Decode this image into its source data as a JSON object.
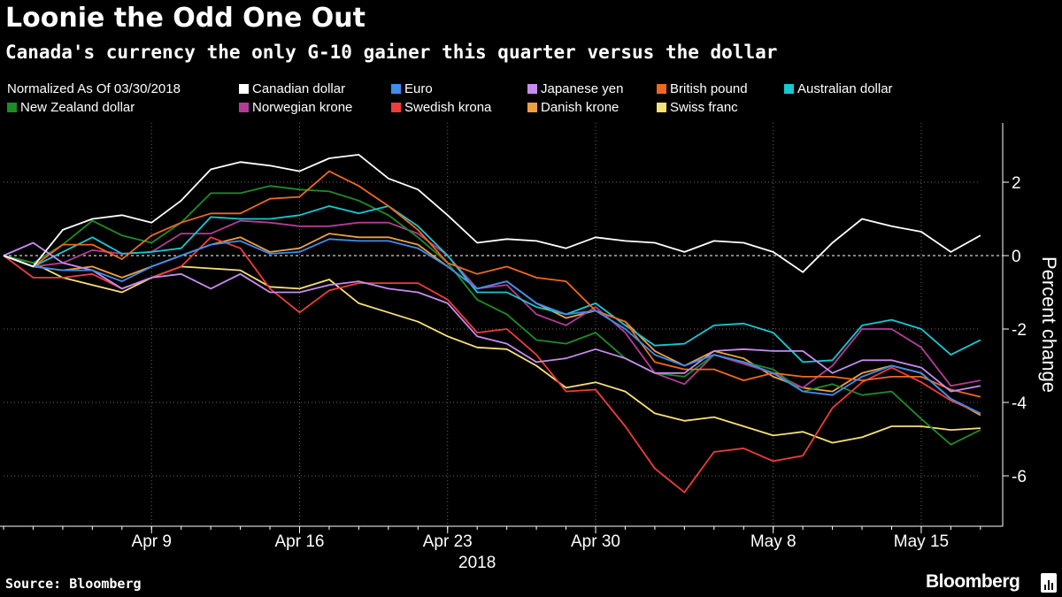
{
  "title": "Loonie the Odd One Out",
  "subtitle": "Canada's currency the only G-10 gainer this quarter versus the dollar",
  "legend_note": "Normalized As Of 03/30/2018",
  "source": "Source: Bloomberg",
  "brand": "Bloomberg",
  "chart_data": {
    "type": "line",
    "title": "Loonie the Odd One Out",
    "subtitle": "Canada's currency the only G-10 gainer this quarter versus the dollar",
    "ylabel": "Percent change",
    "xlabel": "2018",
    "ylim": [
      -7.3,
      3.6
    ],
    "yticks": [
      2,
      0,
      -2,
      -4,
      -6
    ],
    "xlim": [
      0,
      33
    ],
    "xticks": [
      {
        "x": 5,
        "label": "Apr 9"
      },
      {
        "x": 10,
        "label": "Apr 16"
      },
      {
        "x": 15,
        "label": "Apr 23"
      },
      {
        "x": 20,
        "label": "Apr 30"
      },
      {
        "x": 26,
        "label": "May 8"
      },
      {
        "x": 31,
        "label": "May 15"
      }
    ],
    "year_label": "2018",
    "x_dates": [
      "03/30",
      "04/02",
      "04/03",
      "04/04",
      "04/05",
      "04/06",
      "04/09",
      "04/10",
      "04/11",
      "04/12",
      "04/13",
      "04/16",
      "04/17",
      "04/18",
      "04/19",
      "04/20",
      "04/23",
      "04/24",
      "04/25",
      "04/26",
      "04/27",
      "04/30",
      "05/01",
      "05/02",
      "05/03",
      "05/04",
      "05/07",
      "05/08",
      "05/09",
      "05/10",
      "05/11",
      "05/14",
      "05/15",
      "05/16"
    ],
    "zero_line": true,
    "legend_position": "top",
    "series": [
      {
        "name": "Canadian dollar",
        "color": "#ffffff",
        "values": [
          0,
          -0.3,
          0.7,
          1.0,
          1.1,
          0.9,
          1.5,
          2.35,
          2.55,
          2.45,
          2.3,
          2.65,
          2.75,
          2.1,
          1.8,
          1.1,
          0.35,
          0.45,
          0.4,
          0.2,
          0.5,
          0.4,
          0.35,
          0.1,
          0.4,
          0.35,
          0.1,
          -0.45,
          0.35,
          1.0,
          0.8,
          0.65,
          0.1,
          0.55
        ]
      },
      {
        "name": "Euro",
        "color": "#3d8ef0",
        "values": [
          0,
          -0.3,
          -0.4,
          -0.4,
          -0.7,
          -0.3,
          0,
          0.3,
          0.4,
          0.05,
          0.1,
          0.45,
          0.4,
          0.4,
          0.2,
          -0.3,
          -0.9,
          -0.7,
          -1.3,
          -1.6,
          -1.5,
          -2.0,
          -2.7,
          -3.0,
          -2.7,
          -2.9,
          -3.2,
          -3.7,
          -3.8,
          -3.3,
          -3.0,
          -3.2,
          -3.9,
          -4.3
        ]
      },
      {
        "name": "Japanese yen",
        "color": "#c88cf0",
        "values": [
          0,
          0.35,
          -0.2,
          -0.4,
          -0.9,
          -0.6,
          -0.5,
          -0.9,
          -0.5,
          -1.0,
          -1.0,
          -0.8,
          -0.7,
          -0.9,
          -1.0,
          -1.3,
          -2.2,
          -2.4,
          -2.9,
          -2.8,
          -2.55,
          -2.8,
          -3.2,
          -3.2,
          -2.6,
          -2.55,
          -2.6,
          -2.6,
          -3.2,
          -2.85,
          -2.85,
          -3.05,
          -3.7,
          -3.55
        ]
      },
      {
        "name": "British pound",
        "color": "#f06820",
        "values": [
          0,
          -0.3,
          0.3,
          0.3,
          -0.1,
          0.55,
          0.9,
          1.15,
          1.15,
          1.55,
          1.6,
          2.3,
          1.9,
          1.35,
          0.7,
          -0.2,
          -0.5,
          -0.3,
          -0.6,
          -0.7,
          -1.5,
          -1.8,
          -2.9,
          -3.1,
          -3.1,
          -3.4,
          -3.2,
          -3.3,
          -3.3,
          -3.4,
          -3.3,
          -3.3,
          -3.65,
          -3.85
        ]
      },
      {
        "name": "Australian dollar",
        "color": "#19c8d2",
        "values": [
          0,
          -0.3,
          0.1,
          0.5,
          0.05,
          0.1,
          0.2,
          1.05,
          1.0,
          1.0,
          1.1,
          1.35,
          1.15,
          1.35,
          0.8,
          0,
          -1.0,
          -1.0,
          -1.4,
          -1.6,
          -1.3,
          -1.9,
          -2.45,
          -2.4,
          -1.9,
          -1.85,
          -2.1,
          -2.9,
          -2.85,
          -1.9,
          -1.75,
          -2.0,
          -2.7,
          -2.3
        ]
      },
      {
        "name": "New Zealand dollar",
        "color": "#1e8c28",
        "values": [
          0,
          -0.2,
          0.3,
          0.95,
          0.55,
          0.35,
          0.9,
          1.7,
          1.7,
          1.9,
          1.8,
          1.75,
          1.5,
          1.1,
          0.5,
          -0.2,
          -1.2,
          -1.6,
          -2.3,
          -2.4,
          -2.1,
          -2.8,
          -3.2,
          -3.3,
          -2.7,
          -2.9,
          -3.1,
          -3.7,
          -3.5,
          -3.8,
          -3.7,
          -4.45,
          -5.15,
          -4.75
        ]
      },
      {
        "name": "Norwegian krone",
        "color": "#b43c96",
        "values": [
          0,
          -0.3,
          -0.2,
          0.15,
          0.05,
          0.1,
          0.6,
          0.6,
          0.95,
          0.9,
          0.8,
          0.8,
          0.9,
          0.9,
          0.6,
          0,
          -0.9,
          -0.8,
          -1.6,
          -1.9,
          -1.4,
          -2.1,
          -3.2,
          -3.5,
          -2.7,
          -2.95,
          -3.2,
          -3.6,
          -3.0,
          -2.0,
          -2.0,
          -2.5,
          -3.55,
          -3.4
        ]
      },
      {
        "name": "Swedish krona",
        "color": "#f03c3c",
        "values": [
          0,
          -0.6,
          -0.6,
          -0.5,
          -0.9,
          -0.6,
          -0.3,
          0.5,
          0.2,
          -0.9,
          -1.55,
          -0.95,
          -0.75,
          -0.75,
          -0.75,
          -1.2,
          -2.1,
          -2.0,
          -2.7,
          -3.7,
          -3.65,
          -4.65,
          -5.8,
          -6.45,
          -5.35,
          -5.25,
          -5.6,
          -5.45,
          -4.15,
          -3.45,
          -3.05,
          -3.45,
          -3.95,
          -4.3
        ]
      },
      {
        "name": "Danish krone",
        "color": "#f0a040",
        "values": [
          0,
          -0.3,
          -0.4,
          -0.3,
          -0.6,
          -0.3,
          0,
          0.3,
          0.5,
          0.1,
          0.2,
          0.6,
          0.5,
          0.5,
          0.3,
          -0.3,
          -0.9,
          -0.7,
          -1.3,
          -1.7,
          -1.5,
          -1.8,
          -2.6,
          -3.0,
          -2.6,
          -2.8,
          -3.3,
          -3.6,
          -3.7,
          -3.2,
          -3.0,
          -3.2,
          -3.9,
          -4.35
        ]
      },
      {
        "name": "Swiss franc",
        "color": "#f8e078",
        "values": [
          0,
          -0.2,
          -0.6,
          -0.8,
          -1.0,
          -0.6,
          -0.3,
          -0.35,
          -0.4,
          -0.85,
          -0.9,
          -0.65,
          -1.3,
          -1.55,
          -1.8,
          -2.2,
          -2.5,
          -2.55,
          -3.0,
          -3.6,
          -3.45,
          -3.7,
          -4.3,
          -4.5,
          -4.4,
          -4.65,
          -4.9,
          -4.8,
          -5.1,
          -4.95,
          -4.65,
          -4.65,
          -4.75,
          -4.7
        ]
      }
    ]
  }
}
